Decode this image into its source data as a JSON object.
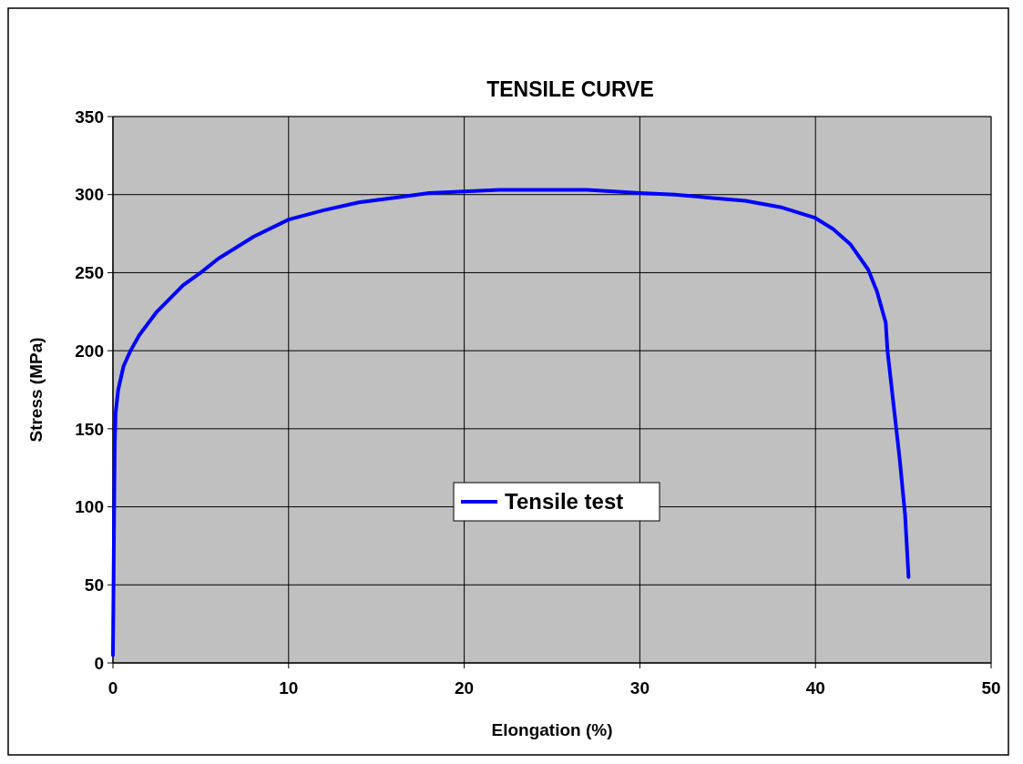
{
  "chart_data": {
    "type": "line",
    "title": "TENSILE CURVE",
    "xlabel": "Elongation (%)",
    "ylabel": "Stress (MPa)",
    "xlim": [
      0,
      50
    ],
    "xticks": [
      0,
      10,
      20,
      30,
      40,
      50
    ],
    "ylim": [
      0,
      350
    ],
    "yticks": [
      0,
      50,
      100,
      150,
      200,
      250,
      300,
      350
    ],
    "grid": true,
    "legend": "center",
    "marker": "none",
    "line_style": "solid",
    "series": [
      {
        "name": "Tensile test",
        "color": "#0000ff",
        "x": [
          0,
          0.05,
          0.1,
          0.15,
          0.3,
          0.6,
          1,
          1.5,
          2.5,
          4,
          5,
          6,
          8,
          10,
          12,
          14,
          16,
          18,
          20,
          22,
          25,
          27,
          30,
          32,
          34,
          36,
          38,
          40,
          41,
          42,
          43,
          43.5,
          44,
          44.1,
          44.5,
          44.8,
          45.1,
          45.3
        ],
        "values": [
          5,
          75,
          140,
          160,
          175,
          190,
          200,
          210,
          225,
          242,
          250,
          259,
          273,
          284,
          290,
          295,
          298,
          301,
          302,
          303,
          303,
          303,
          301,
          300,
          298,
          296,
          292,
          285,
          278,
          268,
          252,
          238,
          218,
          200,
          160,
          130,
          95,
          55
        ]
      }
    ]
  }
}
